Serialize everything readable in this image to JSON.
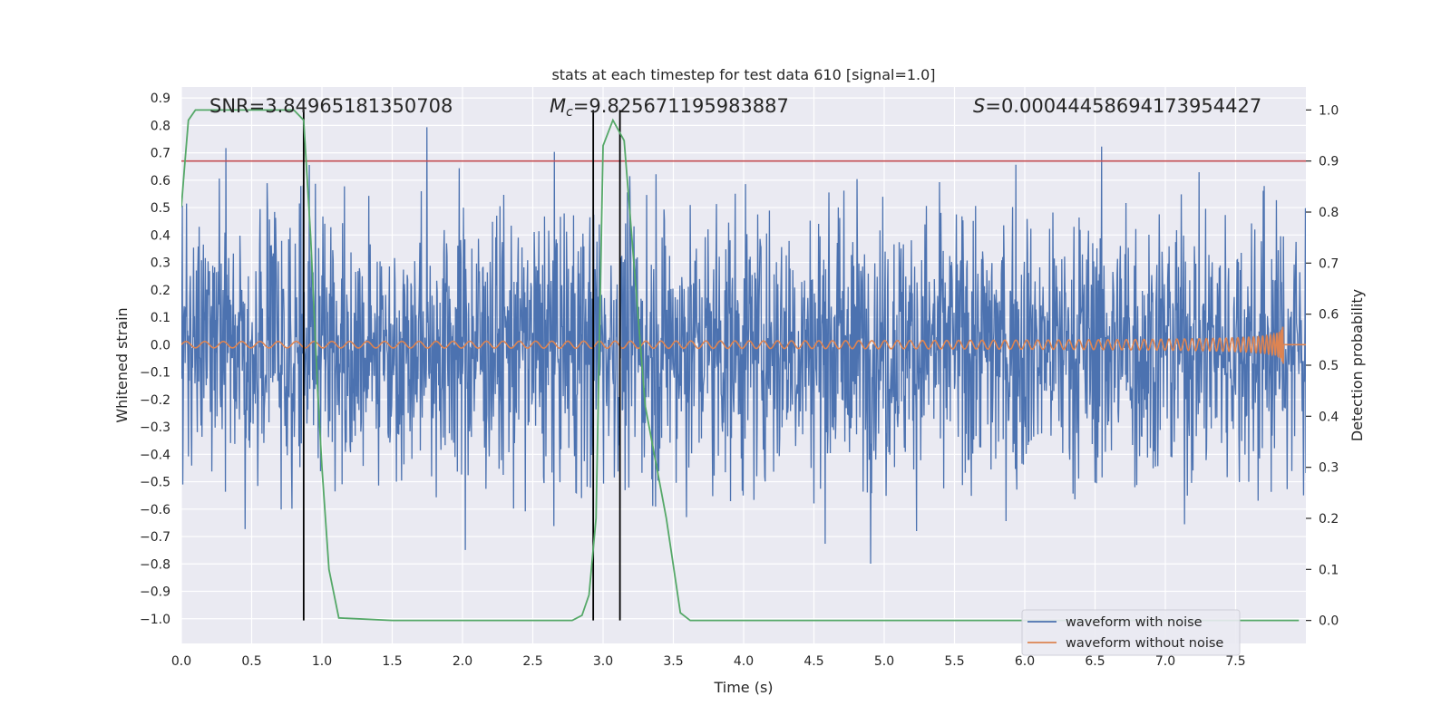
{
  "chart_data": {
    "type": "line",
    "title": "stats at each timestep for test data 610 [signal=1.0]",
    "xlabel": "Time (s)",
    "ylabel": "Whitened strain",
    "y2label": "Detection probability",
    "xlim": [
      0.0,
      8.0
    ],
    "ylim": [
      -1.09,
      0.94
    ],
    "y2lim": [
      -0.045,
      1.045
    ],
    "x_ticks": [
      0.0,
      0.5,
      1.0,
      1.5,
      2.0,
      2.5,
      3.0,
      3.5,
      4.0,
      4.5,
      5.0,
      5.5,
      6.0,
      6.5,
      7.0,
      7.5
    ],
    "x_tick_labels": [
      "0.0",
      "0.5",
      "1.0",
      "1.5",
      "2.0",
      "2.5",
      "3.0",
      "3.5",
      "4.0",
      "4.5",
      "5.0",
      "5.5",
      "6.0",
      "6.5",
      "7.0",
      "7.5"
    ],
    "y_ticks": [
      0.9,
      0.8,
      0.7,
      0.6,
      0.5,
      0.4,
      0.3,
      0.2,
      0.1,
      0.0,
      -0.1,
      -0.2,
      -0.3,
      -0.4,
      -0.5,
      -0.6,
      -0.7,
      -0.8,
      -0.9,
      -1.0
    ],
    "y_tick_labels": [
      "0.9",
      "0.8",
      "0.7",
      "0.6",
      "0.5",
      "0.4",
      "0.3",
      "0.2",
      "0.1",
      "0.0",
      "−0.1",
      "−0.2",
      "−0.3",
      "−0.4",
      "−0.5",
      "−0.6",
      "−0.7",
      "−0.8",
      "−0.9",
      "−1.0"
    ],
    "y2_ticks": [
      1.0,
      0.9,
      0.8,
      0.7,
      0.6,
      0.5,
      0.4,
      0.3,
      0.2,
      0.1,
      0.0
    ],
    "y2_tick_labels": [
      "1.0",
      "0.9",
      "0.8",
      "0.7",
      "0.6",
      "0.5",
      "0.4",
      "0.3",
      "0.2",
      "0.1",
      "0.0"
    ],
    "annotations": {
      "snr": "SNR=3.84965181350708",
      "mc_symbol": "M",
      "mc_subscript": "c",
      "mc_value": "=9.825671195983887",
      "s_symbol": "S",
      "s_value": "=0.00044458694173954427"
    },
    "series": [
      {
        "name": "waveform with noise",
        "color": "#4c72b0",
        "description": "dense whitened noise",
        "x_range": [
          0.0,
          8.0
        ],
        "envelope_max": 0.85,
        "envelope_min": -0.95
      },
      {
        "name": "waveform without noise",
        "color": "#dd8452",
        "description": "chirp signal, amplitude grows toward merger",
        "x_range": [
          0.0,
          8.0
        ],
        "merger_time": 7.84,
        "peak_amplitude": 0.15
      },
      {
        "name": "detection probability",
        "color": "#55a868",
        "axis": "y2",
        "x": [
          0.0,
          0.02,
          0.05,
          0.1,
          0.5,
          0.8,
          0.87,
          0.92,
          0.97,
          1.0,
          1.05,
          1.12,
          1.5,
          2.0,
          2.5,
          2.78,
          2.85,
          2.9,
          2.95,
          3.0,
          3.07,
          3.15,
          3.3,
          3.45,
          3.55,
          3.62,
          4.0,
          7.95
        ],
        "y": [
          0.81,
          0.88,
          0.98,
          1.0,
          1.0,
          1.0,
          0.98,
          0.75,
          0.45,
          0.3,
          0.1,
          0.005,
          0.0,
          0.0,
          0.0,
          0.0,
          0.01,
          0.05,
          0.2,
          0.93,
          0.98,
          0.94,
          0.42,
          0.2,
          0.015,
          0.0,
          0.0,
          0.0
        ]
      }
    ],
    "threshold": {
      "value": 0.9,
      "axis": "y2",
      "color": "#c44e52"
    },
    "vertical_lines": [
      0.87,
      2.93,
      3.12
    ],
    "vertical_line_color": "#000000",
    "legend": {
      "location": "lower-right",
      "entries": [
        "waveform with noise",
        "waveform without noise"
      ]
    },
    "grid": true,
    "background": "#eaeaf2"
  }
}
